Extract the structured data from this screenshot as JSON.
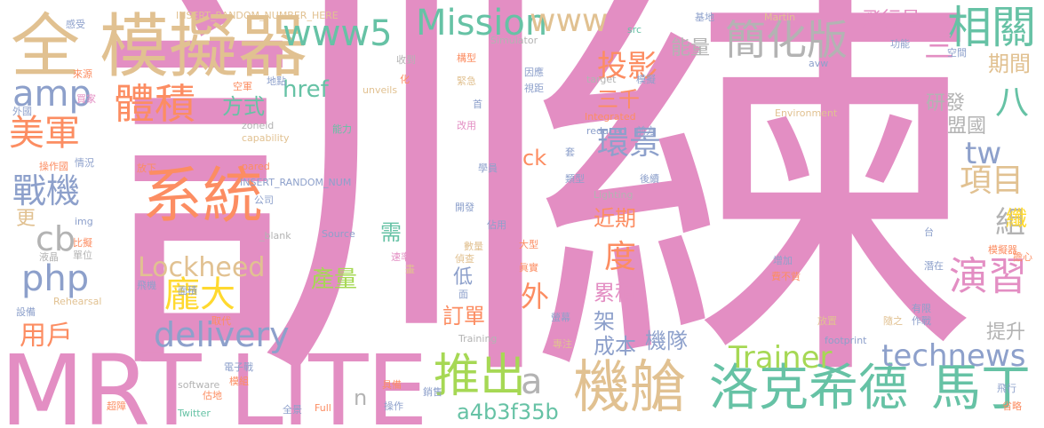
{
  "palette": {
    "pink": "#e38ec3",
    "tan": "#e1c191",
    "blue": "#8da0cb",
    "green": "#66c2a5",
    "orange": "#fc8d62",
    "lime": "#a6d854",
    "yellow": "#ffd92f",
    "gray": "#b3b3b3"
  },
  "words": {
    "w01": "訓練",
    "w02": "MRT LITE",
    "w03": "全",
    "w04": "模擬器",
    "w05": "系統",
    "w06": "機艙",
    "w07": "洛克希德",
    "w08": "馬丁",
    "w09": "體積",
    "w10": "美軍",
    "w11": "推出",
    "w12": "相關",
    "w13": "簡化版",
    "w14": "Mission",
    "w15": "www5",
    "w16": "www",
    "w17": "演習",
    "w18": "technews",
    "w19": "Trainer",
    "w20": "delivery",
    "w21": "Lockheed",
    "w22": "龐大",
    "w23": "php",
    "w24": "amp",
    "w25": "戰機",
    "w26": "cb",
    "w27": "環景",
    "w28": "投影",
    "w29": "能量",
    "w30": "飛行員",
    "w31": "三",
    "w32": "八",
    "w33": "tw",
    "w34": "項目",
    "w35": "組",
    "w36": "度",
    "w37": "外",
    "w38": "a",
    "w39": "a4b3f35b",
    "w40": "產量",
    "w41": "用戶",
    "w42": "href",
    "w43": "方式",
    "w44": "三千",
    "w45": "近期",
    "w46": "累積",
    "w47": "訂單",
    "w48": "架",
    "w49": "成本",
    "w50": "機隊",
    "w51": "提升",
    "w52": "盟國",
    "w53": "研發",
    "w54": "期間",
    "w55": "ck",
    "w56": "需",
    "w57": "低",
    "w58": "更",
    "w59": "n",
    "w60": "纖",
    "w61": "INSERT_RANDOM_NUMBER_HERE",
    "w62": "INSERT_RANDOM_NUM",
    "w63": "Simulator",
    "w64": "Martin",
    "w65": "Environment",
    "w66": "Integrated",
    "w67": "capability",
    "w68": "unveils",
    "w69": "zoneid",
    "w70": "Lighting",
    "w71": "Source",
    "w72": "Rehearsal",
    "w73": "Training",
    "w74": "software",
    "w75": "Twitter",
    "w76": "Full",
    "w77": "footprint",
    "w78": "reduced",
    "w79": "target",
    "w80": "src",
    "w81": "img",
    "w82": "_blank",
    "w83": "pared",
    "w84": "avw",
    "w85": "感受",
    "w86": "來源",
    "w87": "外國",
    "w88": "買家",
    "w89": "操作國",
    "w90": "情況",
    "w91": "比擬",
    "w92": "液晶",
    "w93": "單位",
    "w94": "設備",
    "w95": "飛機",
    "w96": "面積",
    "w97": "取代",
    "w98": "電子戰",
    "w99": "模組",
    "w100": "估地",
    "w101": "超障",
    "w102": "全景",
    "w103": "操作",
    "w104": "銷售",
    "w105": "具備",
    "w106": "專注",
    "w107": "螢幕",
    "w108": "偵查",
    "w109": "數量",
    "w110": "大型",
    "w111": "佔用",
    "w112": "開發",
    "w113": "學員",
    "w114": "類型",
    "w115": "後續",
    "w116": "套",
    "w117": "前方",
    "w118": "改用",
    "w119": "首",
    "w120": "視距",
    "w121": "因應",
    "w122": "緊急",
    "w123": "構型",
    "w124": "收到",
    "w125": "化",
    "w126": "地點",
    "w127": "空軍",
    "w128": "能力",
    "w129": "公司",
    "w130": "放下",
    "w131": "基地",
    "w132": "功能",
    "w133": "空間",
    "w134": "模擬",
    "w135": "增加",
    "w136": "費不貲",
    "w137": "台",
    "w138": "潛在",
    "w139": "擔心",
    "w140": "模擬器",
    "w141": "有限",
    "w142": "作戰",
    "w143": "放置",
    "w144": "隨之",
    "w145": "飛行",
    "w146": "省略",
    "w147": "速率",
    "w148": "畫",
    "w149": "面",
    "w150": "眞實"
  }
}
